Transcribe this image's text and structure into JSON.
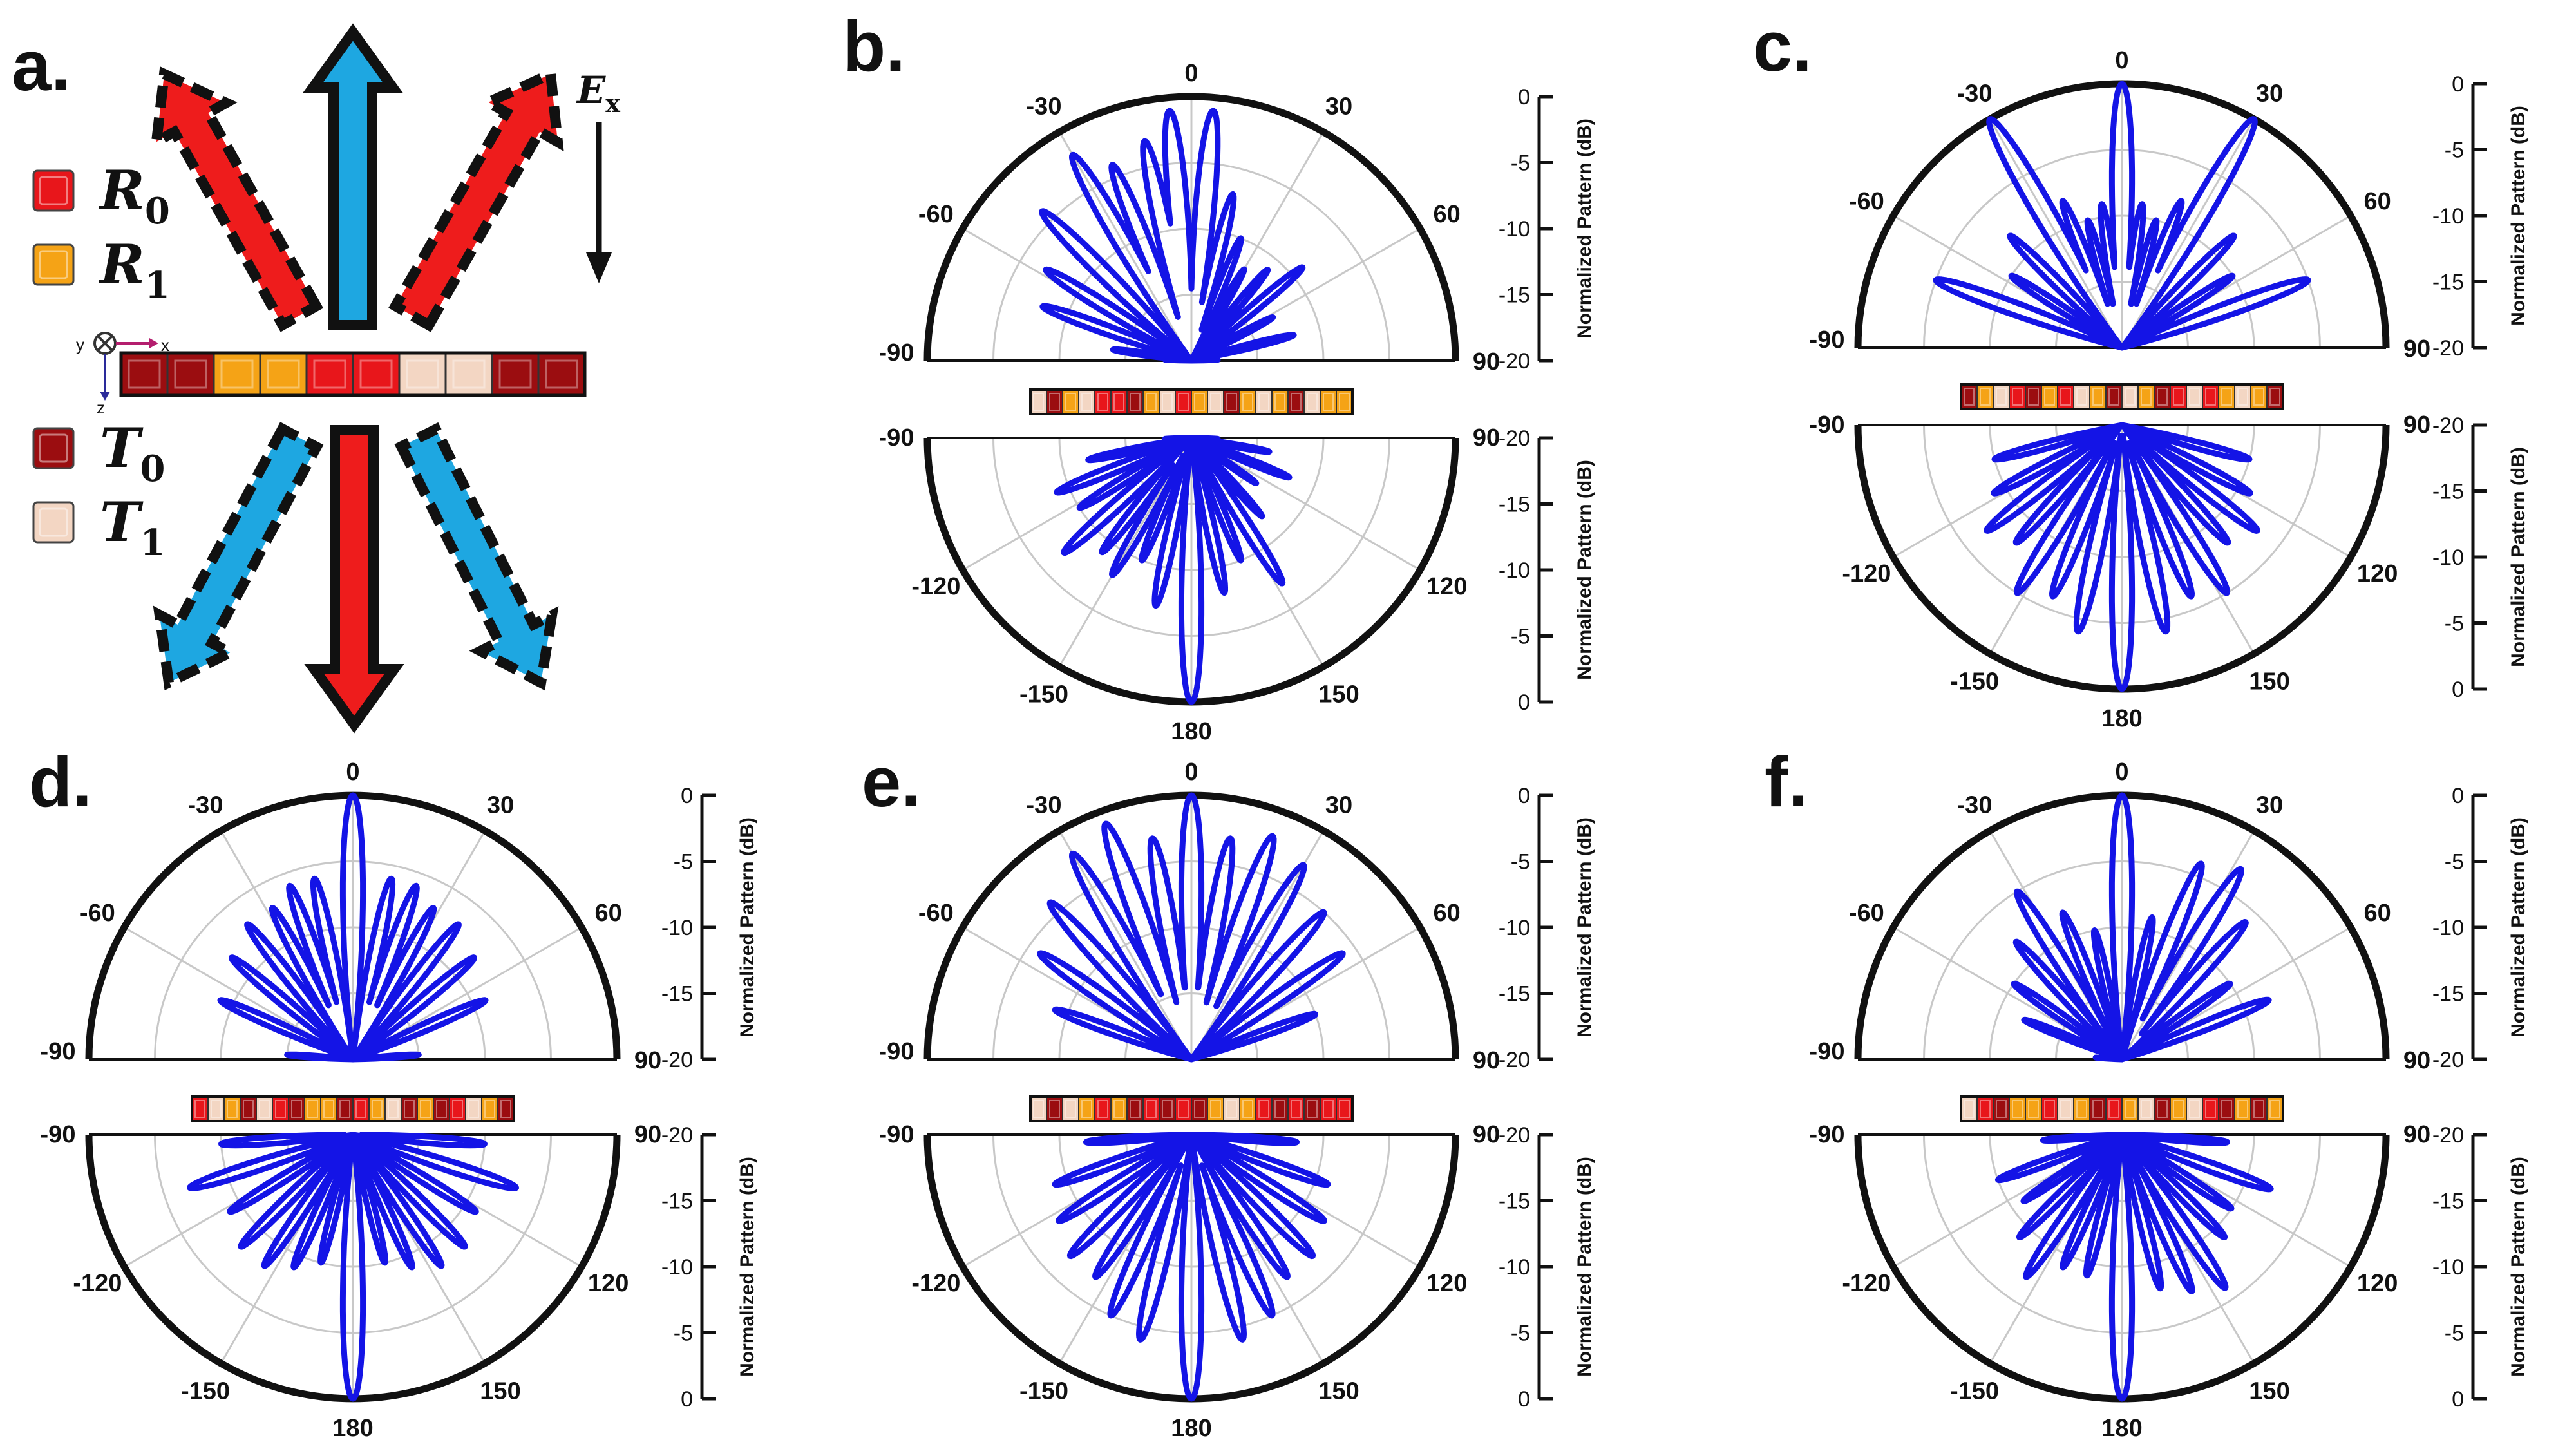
{
  "colors": {
    "R0": "#e8161b",
    "R1": "#f5a316",
    "T0": "#9b0d10",
    "T1": "#f3d6c3",
    "pattern": "#1414e6",
    "arrow_blue": "#1ea7e1",
    "arrow_red": "#ee1c1c"
  },
  "panel_a": {
    "label": "a.",
    "field_label": "E",
    "field_sub": "x",
    "axes": {
      "y": "y",
      "x": "x",
      "z": "z"
    },
    "legend": [
      {
        "symbol": "R",
        "sub": "0",
        "key": "R0"
      },
      {
        "symbol": "R",
        "sub": "1",
        "key": "R1"
      },
      {
        "symbol": "T",
        "sub": "0",
        "key": "T0"
      },
      {
        "symbol": "T",
        "sub": "1",
        "key": "T1"
      }
    ],
    "strip": [
      "T0",
      "T0",
      "R1",
      "R1",
      "R0",
      "R0",
      "T1",
      "T1",
      "T0",
      "T0"
    ]
  },
  "chart_data": [
    {
      "panel": "b.",
      "type": "polar",
      "top_ticks": [
        "-90",
        "-60",
        "-30",
        "0",
        "30",
        "60",
        "90"
      ],
      "bottom_ticks": [
        "-90",
        "-120",
        "-150",
        "180",
        "150",
        "120",
        "90"
      ],
      "top_scale": [
        "0",
        "-5",
        "-10",
        "-15",
        "-20"
      ],
      "bottom_scale": [
        "-20",
        "-15",
        "-10",
        "-5",
        "0"
      ],
      "ylabel": "Normalized Pattern (dB)",
      "rlim": [
        -20,
        0
      ],
      "top_lobes": [
        [
          -88,
          -18
        ],
        [
          -82,
          -14
        ],
        [
          -70,
          -8
        ],
        [
          -58,
          -7
        ],
        [
          -45,
          -4
        ],
        [
          -30,
          -2
        ],
        [
          -22,
          -4
        ],
        [
          -12,
          -3
        ],
        [
          -5,
          -1
        ],
        [
          5,
          -1
        ],
        [
          14,
          -7
        ],
        [
          22,
          -10
        ],
        [
          30,
          -12
        ],
        [
          40,
          -11
        ],
        [
          50,
          -9
        ],
        [
          62,
          -13
        ],
        [
          76,
          -12
        ],
        [
          88,
          -18
        ]
      ],
      "bottom_lobes": [
        [
          -88,
          -18
        ],
        [
          -78,
          -12
        ],
        [
          -68,
          -9
        ],
        [
          -58,
          -10
        ],
        [
          -48,
          -7
        ],
        [
          -38,
          -9
        ],
        [
          -30,
          -8
        ],
        [
          -22,
          -10
        ],
        [
          -12,
          -7
        ],
        [
          0,
          0
        ],
        [
          12,
          -8
        ],
        [
          22,
          -10
        ],
        [
          32,
          -7
        ],
        [
          42,
          -12
        ],
        [
          55,
          -14
        ],
        [
          68,
          -12
        ],
        [
          80,
          -14
        ],
        [
          88,
          -18
        ]
      ],
      "strip": [
        "T1",
        "T0",
        "R1",
        "T1",
        "R0",
        "R0",
        "T0",
        "R1",
        "T1",
        "R0",
        "R1",
        "T1",
        "T0",
        "R1",
        "T1",
        "R1",
        "T0",
        "T1",
        "R1",
        "R1"
      ]
    },
    {
      "panel": "c.",
      "type": "polar",
      "top_ticks": [
        "-90",
        "-60",
        "-30",
        "0",
        "30",
        "60",
        "90"
      ],
      "bottom_ticks": [
        "-90",
        "-120",
        "-150",
        "180",
        "150",
        "120",
        "90"
      ],
      "top_scale": [
        "0",
        "-5",
        "-10",
        "-15",
        "-20"
      ],
      "bottom_scale": [
        "-20",
        "-15",
        "-10",
        "-5",
        "0"
      ],
      "ylabel": "Normalized Pattern (dB)",
      "rlim": [
        -20,
        0
      ],
      "top_lobes": [
        [
          -88,
          -20
        ],
        [
          -70,
          -5
        ],
        [
          -57,
          -10
        ],
        [
          -45,
          -8
        ],
        [
          -30,
          0
        ],
        [
          -22,
          -8
        ],
        [
          -15,
          -10
        ],
        [
          -8,
          -9
        ],
        [
          0,
          0
        ],
        [
          8,
          -9
        ],
        [
          15,
          -10
        ],
        [
          22,
          -8
        ],
        [
          30,
          0
        ],
        [
          45,
          -8
        ],
        [
          57,
          -10
        ],
        [
          70,
          -5
        ],
        [
          88,
          -20
        ]
      ],
      "bottom_lobes": [
        [
          -88,
          -20
        ],
        [
          -75,
          -10
        ],
        [
          -62,
          -9
        ],
        [
          -52,
          -7
        ],
        [
          -42,
          -8
        ],
        [
          -32,
          -5
        ],
        [
          -22,
          -6
        ],
        [
          -12,
          -4
        ],
        [
          0,
          0
        ],
        [
          12,
          -4
        ],
        [
          22,
          -6
        ],
        [
          32,
          -5
        ],
        [
          42,
          -8
        ],
        [
          52,
          -7
        ],
        [
          62,
          -9
        ],
        [
          75,
          -10
        ],
        [
          88,
          -20
        ]
      ],
      "strip": [
        "T0",
        "R1",
        "T1",
        "R0",
        "T0",
        "R1",
        "R0",
        "T1",
        "R1",
        "T0",
        "T1",
        "R1",
        "T0",
        "R0",
        "T1",
        "R0",
        "R1",
        "T1",
        "R1",
        "T0"
      ]
    },
    {
      "panel": "d.",
      "type": "polar",
      "top_ticks": [
        "-90",
        "-60",
        "-30",
        "0",
        "30",
        "60",
        "90"
      ],
      "bottom_ticks": [
        "-90",
        "-120",
        "-150",
        "180",
        "150",
        "120",
        "90"
      ],
      "top_scale": [
        "0",
        "-5",
        "-10",
        "-15",
        "-20"
      ],
      "bottom_scale": [
        "-20",
        "-15",
        "-10",
        "-5",
        "0"
      ],
      "ylabel": "Normalized Pattern (dB)",
      "rlim": [
        -20,
        0
      ],
      "top_lobes": [
        [
          -86,
          -15
        ],
        [
          -66,
          -9
        ],
        [
          -50,
          -8
        ],
        [
          -38,
          -7
        ],
        [
          -28,
          -7
        ],
        [
          -20,
          -6
        ],
        [
          -12,
          -6
        ],
        [
          0,
          0
        ],
        [
          12,
          -6
        ],
        [
          20,
          -6
        ],
        [
          28,
          -7
        ],
        [
          38,
          -7
        ],
        [
          50,
          -8
        ],
        [
          66,
          -9
        ],
        [
          86,
          -15
        ]
      ],
      "bottom_lobes": [
        [
          -86,
          -10
        ],
        [
          -72,
          -7
        ],
        [
          -58,
          -9
        ],
        [
          -45,
          -8
        ],
        [
          -34,
          -8
        ],
        [
          -24,
          -9
        ],
        [
          -14,
          -10
        ],
        [
          0,
          0
        ],
        [
          14,
          -10
        ],
        [
          24,
          -9
        ],
        [
          34,
          -8
        ],
        [
          45,
          -8
        ],
        [
          58,
          -9
        ],
        [
          72,
          -7
        ],
        [
          86,
          -10
        ]
      ],
      "strip": [
        "R0",
        "T1",
        "R1",
        "T0",
        "T1",
        "R0",
        "T0",
        "R1",
        "R1",
        "T0",
        "R0",
        "R1",
        "T1",
        "T0",
        "R1",
        "T0",
        "R0",
        "T1",
        "R1",
        "T0"
      ]
    },
    {
      "panel": "e.",
      "type": "polar",
      "top_ticks": [
        "-90",
        "-60",
        "-30",
        "0",
        "30",
        "60",
        "90"
      ],
      "bottom_ticks": [
        "-90",
        "-120",
        "-150",
        "180",
        "150",
        "120",
        "90"
      ],
      "top_scale": [
        "0",
        "-5",
        "-10",
        "-15",
        "-20"
      ],
      "bottom_scale": [
        "-20",
        "-15",
        "-10",
        "-5",
        "0"
      ],
      "ylabel": "Normalized Pattern (dB)",
      "rlim": [
        -20,
        0
      ],
      "top_lobes": [
        [
          -86,
          -20
        ],
        [
          -70,
          -9
        ],
        [
          -55,
          -6
        ],
        [
          -42,
          -4
        ],
        [
          -30,
          -2
        ],
        [
          -20,
          -1
        ],
        [
          -10,
          -3
        ],
        [
          0,
          0
        ],
        [
          10,
          -3
        ],
        [
          20,
          -2
        ],
        [
          30,
          -3
        ],
        [
          42,
          -5
        ],
        [
          55,
          -6
        ],
        [
          70,
          -10
        ],
        [
          86,
          -20
        ]
      ],
      "bottom_lobes": [
        [
          -86,
          -12
        ],
        [
          -70,
          -9
        ],
        [
          -57,
          -8
        ],
        [
          -45,
          -7
        ],
        [
          -34,
          -7
        ],
        [
          -24,
          -5
        ],
        [
          -14,
          -4
        ],
        [
          0,
          0
        ],
        [
          14,
          -4
        ],
        [
          24,
          -5
        ],
        [
          34,
          -7
        ],
        [
          45,
          -7
        ],
        [
          57,
          -8
        ],
        [
          70,
          -9
        ],
        [
          86,
          -12
        ]
      ],
      "strip": [
        "T1",
        "T0",
        "T1",
        "R1",
        "R0",
        "R1",
        "T0",
        "R0",
        "T0",
        "R0",
        "T0",
        "R1",
        "T1",
        "R1",
        "R0",
        "T0",
        "R0",
        "T0",
        "R0",
        "R0"
      ]
    },
    {
      "panel": "f.",
      "type": "polar",
      "top_ticks": [
        "-90",
        "-60",
        "-30",
        "0",
        "30",
        "60",
        "90"
      ],
      "bottom_ticks": [
        "-90",
        "-120",
        "-150",
        "180",
        "150",
        "120",
        "90"
      ],
      "top_scale": [
        "0",
        "-5",
        "-10",
        "-15",
        "-20"
      ],
      "bottom_scale": [
        "-20",
        "-15",
        "-10",
        "-5",
        "0"
      ],
      "ylabel": "Normalized Pattern (dB)",
      "rlim": [
        -20,
        0
      ],
      "top_lobes": [
        [
          -86,
          -18
        ],
        [
          -68,
          -12
        ],
        [
          -55,
          -10
        ],
        [
          -42,
          -8
        ],
        [
          -32,
          -5
        ],
        [
          -22,
          -8
        ],
        [
          -12,
          -10
        ],
        [
          0,
          0
        ],
        [
          12,
          -9
        ],
        [
          22,
          -4
        ],
        [
          32,
          -3
        ],
        [
          42,
          -6
        ],
        [
          55,
          -10
        ],
        [
          68,
          -8
        ],
        [
          86,
          -20
        ]
      ],
      "bottom_lobes": [
        [
          -86,
          -14
        ],
        [
          -70,
          -10
        ],
        [
          -56,
          -11
        ],
        [
          -45,
          -9
        ],
        [
          -34,
          -7
        ],
        [
          -24,
          -9
        ],
        [
          -14,
          -9
        ],
        [
          0,
          0
        ],
        [
          14,
          -8
        ],
        [
          24,
          -7
        ],
        [
          34,
          -6
        ],
        [
          45,
          -9
        ],
        [
          56,
          -10
        ],
        [
          70,
          -8
        ],
        [
          86,
          -12
        ]
      ],
      "strip": [
        "T1",
        "R0",
        "T0",
        "R1",
        "R1",
        "R0",
        "T1",
        "R1",
        "T0",
        "R0",
        "R1",
        "T1",
        "T0",
        "R1",
        "T1",
        "R0",
        "T0",
        "R1",
        "T0",
        "R1"
      ]
    }
  ]
}
